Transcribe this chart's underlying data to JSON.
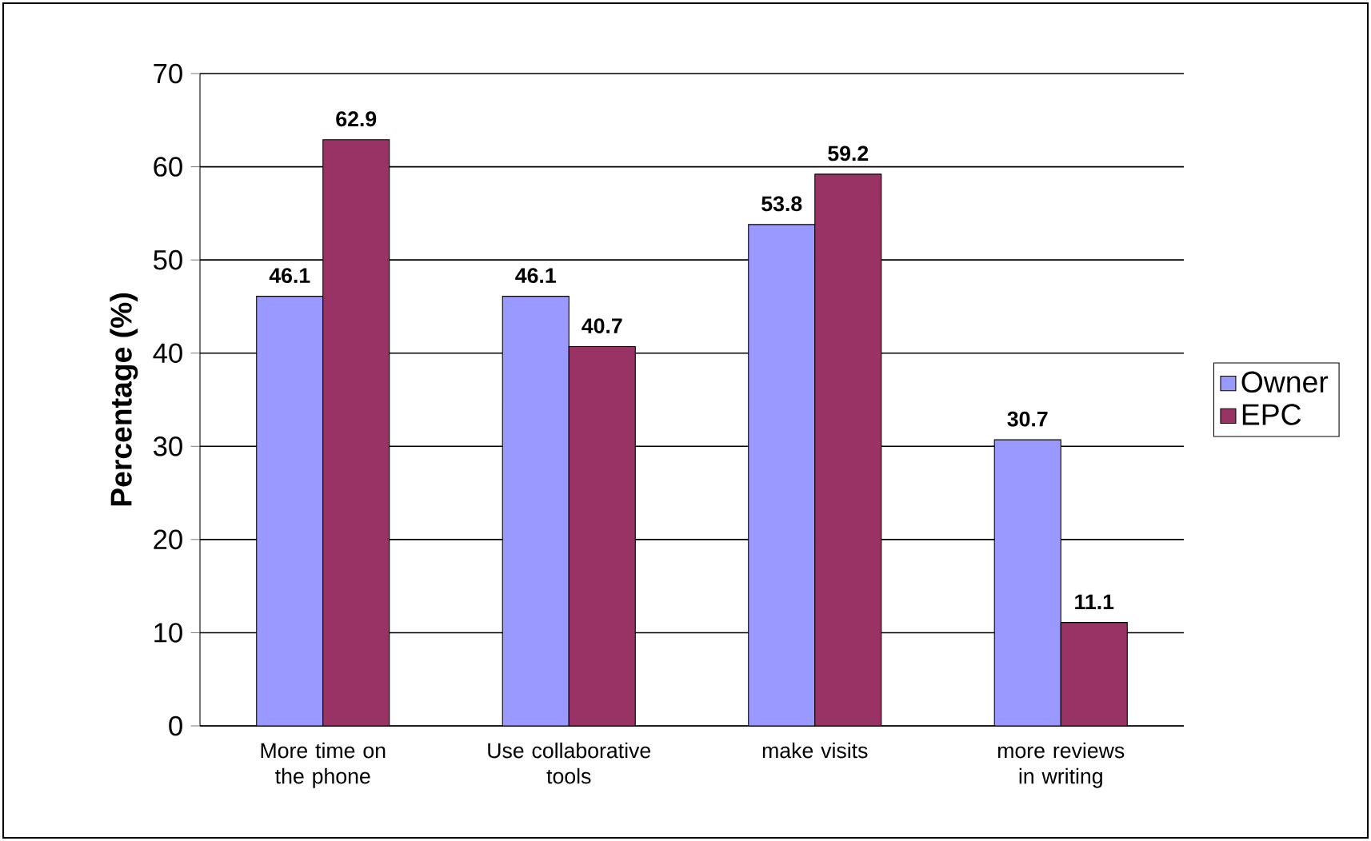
{
  "chart_data": {
    "type": "bar",
    "ylabel": "Percentage (%)",
    "categories": [
      "More time on the phone",
      "Use collaborative tools",
      "make visits",
      "more reviews in writing"
    ],
    "series": [
      {
        "name": "Owner",
        "color": "#9999ff",
        "values": [
          46.1,
          46.1,
          53.8,
          30.7
        ]
      },
      {
        "name": "EPC",
        "color": "#993366",
        "values": [
          62.9,
          40.7,
          59.2,
          11.1
        ]
      }
    ],
    "ylim": [
      0,
      70
    ],
    "yticks": [
      0,
      10,
      20,
      30,
      40,
      50,
      60,
      70
    ],
    "grid": "y",
    "legend": "right",
    "data_labels": true
  }
}
